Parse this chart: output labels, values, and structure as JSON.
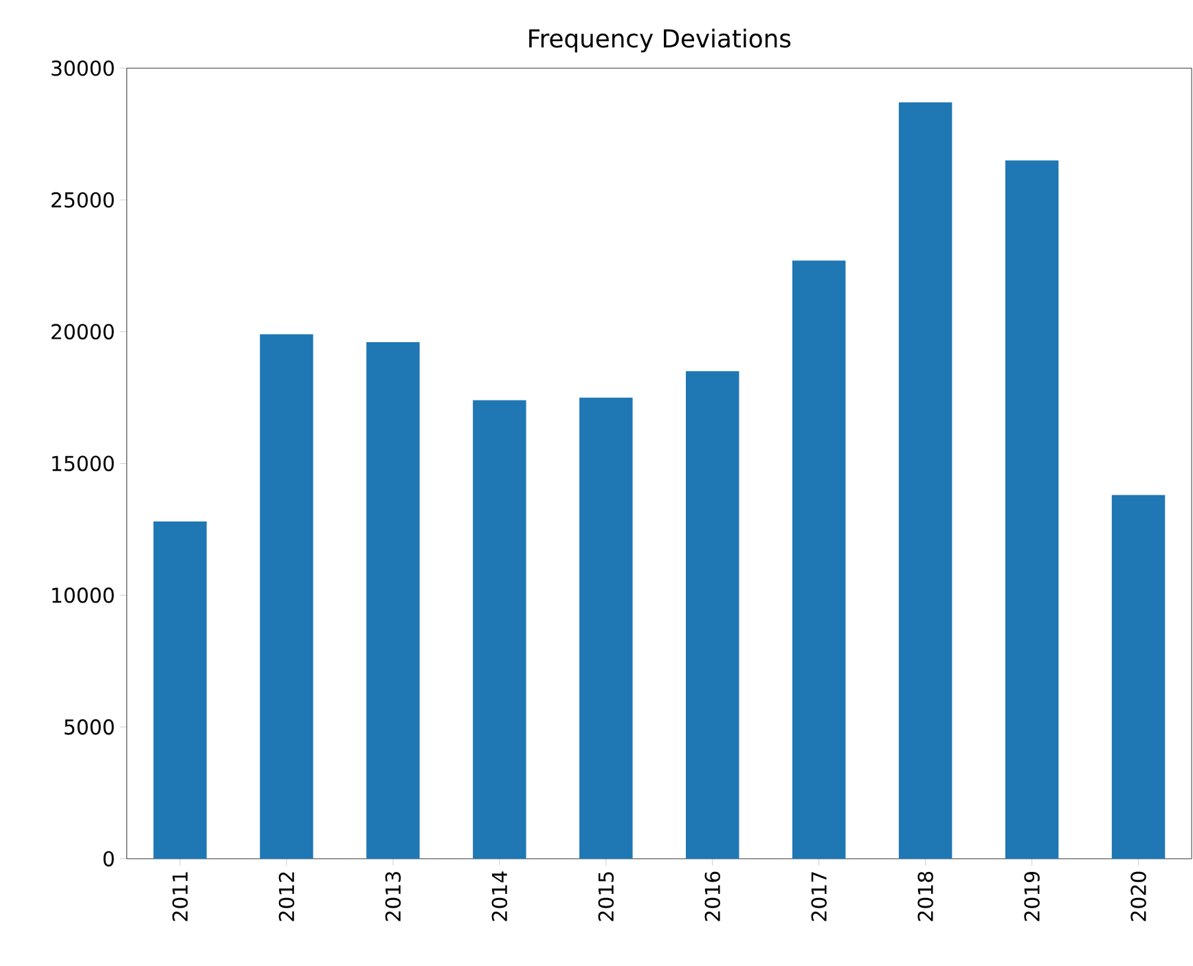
{
  "chart_data": {
    "type": "bar",
    "title": "Frequency Deviations",
    "categories": [
      "2011",
      "2012",
      "2013",
      "2014",
      "2015",
      "2016",
      "2017",
      "2018",
      "2019",
      "2020"
    ],
    "values": [
      12800,
      19900,
      19600,
      17400,
      17500,
      18500,
      22700,
      28700,
      26500,
      13800
    ],
    "color": "#1f77b4",
    "ylim": [
      0,
      30000
    ],
    "yticks": [
      0,
      5000,
      10000,
      15000,
      20000,
      25000,
      30000
    ]
  }
}
